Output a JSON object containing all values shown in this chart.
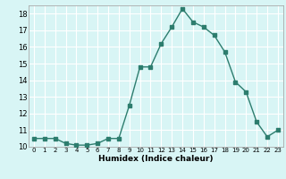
{
  "x": [
    0,
    1,
    2,
    3,
    4,
    5,
    6,
    7,
    8,
    9,
    10,
    11,
    12,
    13,
    14,
    15,
    16,
    17,
    18,
    19,
    20,
    21,
    22,
    23
  ],
  "y": [
    10.5,
    10.5,
    10.5,
    10.2,
    10.1,
    10.1,
    10.2,
    10.5,
    10.5,
    12.5,
    14.8,
    14.8,
    16.2,
    17.2,
    18.3,
    17.5,
    17.2,
    16.7,
    15.7,
    13.9,
    13.3,
    11.5,
    10.6,
    11.0
  ],
  "xlabel": "Humidex (Indice chaleur)",
  "ylim": [
    10,
    18.5
  ],
  "xlim": [
    -0.5,
    23.5
  ],
  "yticks": [
    10,
    11,
    12,
    13,
    14,
    15,
    16,
    17,
    18
  ],
  "xticks": [
    0,
    1,
    2,
    3,
    4,
    5,
    6,
    7,
    8,
    9,
    10,
    11,
    12,
    13,
    14,
    15,
    16,
    17,
    18,
    19,
    20,
    21,
    22,
    23
  ],
  "line_color": "#2d7d6e",
  "marker_color": "#2d7d6e",
  "bg_color": "#d8f5f5",
  "grid_color": "#ffffff",
  "spine_color": "#aaaaaa"
}
